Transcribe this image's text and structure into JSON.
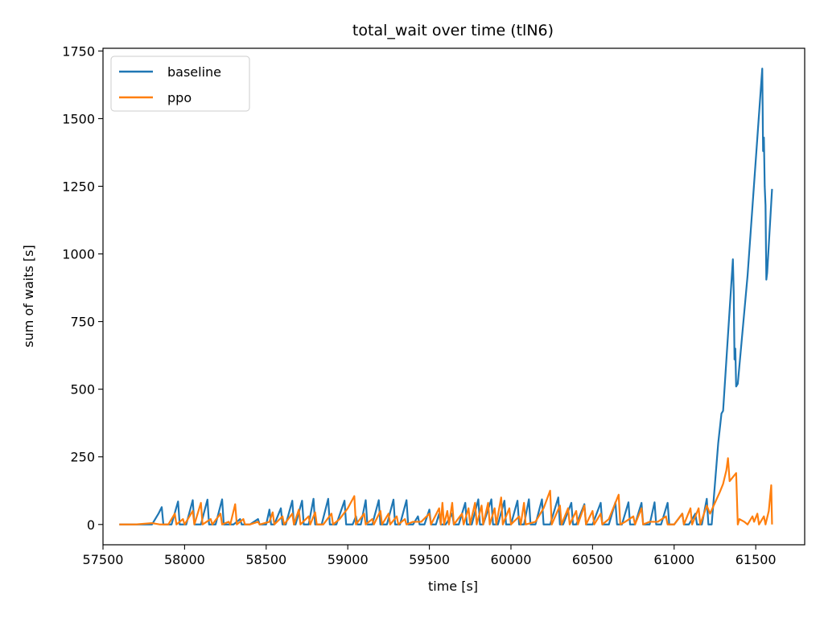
{
  "chart_data": {
    "type": "line",
    "title": "total_wait over time (tlN6)",
    "xlabel": "time [s]",
    "ylabel": "sum of waits [s]",
    "xlim": [
      57500,
      61800
    ],
    "ylim": [
      -75,
      1760
    ],
    "xticks": [
      57500,
      58000,
      58500,
      59000,
      59500,
      60000,
      60500,
      61000,
      61500
    ],
    "yticks": [
      0,
      250,
      500,
      750,
      1000,
      1250,
      1500,
      1750
    ],
    "grid": false,
    "legend": "top-left",
    "series": [
      {
        "name": "baseline",
        "color": "#1f77b4",
        "points": [
          [
            57600,
            0
          ],
          [
            57700,
            0
          ],
          [
            57800,
            0
          ],
          [
            57840,
            40
          ],
          [
            57860,
            64
          ],
          [
            57870,
            0
          ],
          [
            57920,
            0
          ],
          [
            57960,
            85
          ],
          [
            57970,
            0
          ],
          [
            58010,
            0
          ],
          [
            58050,
            90
          ],
          [
            58060,
            0
          ],
          [
            58100,
            0
          ],
          [
            58140,
            92
          ],
          [
            58150,
            0
          ],
          [
            58190,
            0
          ],
          [
            58230,
            93
          ],
          [
            58240,
            0
          ],
          [
            58300,
            0
          ],
          [
            58340,
            20
          ],
          [
            58350,
            0
          ],
          [
            58400,
            0
          ],
          [
            58450,
            20
          ],
          [
            58460,
            0
          ],
          [
            58500,
            0
          ],
          [
            58520,
            55
          ],
          [
            58530,
            0
          ],
          [
            58550,
            0
          ],
          [
            58590,
            60
          ],
          [
            58600,
            0
          ],
          [
            58620,
            0
          ],
          [
            58660,
            88
          ],
          [
            58670,
            0
          ],
          [
            58680,
            0
          ],
          [
            58720,
            88
          ],
          [
            58730,
            0
          ],
          [
            58760,
            0
          ],
          [
            58790,
            95
          ],
          [
            58800,
            0
          ],
          [
            58840,
            0
          ],
          [
            58880,
            95
          ],
          [
            58890,
            0
          ],
          [
            58930,
            0
          ],
          [
            58980,
            88
          ],
          [
            58990,
            0
          ],
          [
            59030,
            0
          ],
          [
            59050,
            30
          ],
          [
            59060,
            0
          ],
          [
            59080,
            0
          ],
          [
            59110,
            90
          ],
          [
            59120,
            0
          ],
          [
            59150,
            0
          ],
          [
            59190,
            90
          ],
          [
            59200,
            0
          ],
          [
            59240,
            0
          ],
          [
            59280,
            92
          ],
          [
            59290,
            0
          ],
          [
            59320,
            0
          ],
          [
            59360,
            90
          ],
          [
            59370,
            0
          ],
          [
            59400,
            0
          ],
          [
            59430,
            30
          ],
          [
            59440,
            0
          ],
          [
            59470,
            0
          ],
          [
            59500,
            55
          ],
          [
            59510,
            0
          ],
          [
            59540,
            0
          ],
          [
            59560,
            40
          ],
          [
            59570,
            0
          ],
          [
            59600,
            0
          ],
          [
            59640,
            40
          ],
          [
            59650,
            0
          ],
          [
            59680,
            0
          ],
          [
            59720,
            80
          ],
          [
            59730,
            0
          ],
          [
            59760,
            0
          ],
          [
            59800,
            93
          ],
          [
            59810,
            0
          ],
          [
            59830,
            0
          ],
          [
            59880,
            93
          ],
          [
            59890,
            0
          ],
          [
            59920,
            0
          ],
          [
            59960,
            88
          ],
          [
            59970,
            0
          ],
          [
            60000,
            0
          ],
          [
            60040,
            88
          ],
          [
            60050,
            0
          ],
          [
            60080,
            0
          ],
          [
            60110,
            93
          ],
          [
            60120,
            0
          ],
          [
            60150,
            0
          ],
          [
            60190,
            93
          ],
          [
            60200,
            0
          ],
          [
            60240,
            0
          ],
          [
            60290,
            100
          ],
          [
            60300,
            0
          ],
          [
            60320,
            0
          ],
          [
            60370,
            80
          ],
          [
            60380,
            0
          ],
          [
            60400,
            0
          ],
          [
            60450,
            75
          ],
          [
            60460,
            0
          ],
          [
            60500,
            0
          ],
          [
            60550,
            80
          ],
          [
            60560,
            0
          ],
          [
            60600,
            0
          ],
          [
            60640,
            82
          ],
          [
            60650,
            0
          ],
          [
            60680,
            0
          ],
          [
            60720,
            82
          ],
          [
            60730,
            0
          ],
          [
            60760,
            0
          ],
          [
            60800,
            80
          ],
          [
            60810,
            0
          ],
          [
            60850,
            0
          ],
          [
            60880,
            82
          ],
          [
            60890,
            0
          ],
          [
            60920,
            0
          ],
          [
            60960,
            80
          ],
          [
            60970,
            0
          ],
          [
            61000,
            0
          ],
          [
            61050,
            40
          ],
          [
            61060,
            0
          ],
          [
            61090,
            0
          ],
          [
            61130,
            40
          ],
          [
            61140,
            0
          ],
          [
            61170,
            0
          ],
          [
            61200,
            95
          ],
          [
            61210,
            0
          ],
          [
            61230,
            0
          ],
          [
            61250,
            150
          ],
          [
            61270,
            300
          ],
          [
            61290,
            410
          ],
          [
            61300,
            420
          ],
          [
            61360,
            980
          ],
          [
            61365,
            860
          ],
          [
            61370,
            610
          ],
          [
            61375,
            650
          ],
          [
            61380,
            510
          ],
          [
            61390,
            520
          ],
          [
            61450,
            920
          ],
          [
            61540,
            1685
          ],
          [
            61545,
            1380
          ],
          [
            61550,
            1430
          ],
          [
            61552,
            1360
          ],
          [
            61555,
            1250
          ],
          [
            61560,
            1180
          ],
          [
            61565,
            905
          ],
          [
            61570,
            930
          ],
          [
            61600,
            1240
          ]
        ]
      },
      {
        "name": "ppo",
        "color": "#ff7f0e",
        "points": [
          [
            57600,
            0
          ],
          [
            57700,
            0
          ],
          [
            57800,
            5
          ],
          [
            57850,
            0
          ],
          [
            57900,
            0
          ],
          [
            57940,
            40
          ],
          [
            57950,
            0
          ],
          [
            57990,
            20
          ],
          [
            58000,
            0
          ],
          [
            58050,
            50
          ],
          [
            58060,
            0
          ],
          [
            58100,
            80
          ],
          [
            58110,
            0
          ],
          [
            58160,
            20
          ],
          [
            58170,
            0
          ],
          [
            58220,
            40
          ],
          [
            58230,
            0
          ],
          [
            58270,
            10
          ],
          [
            58280,
            0
          ],
          [
            58310,
            75
          ],
          [
            58320,
            0
          ],
          [
            58360,
            20
          ],
          [
            58370,
            0
          ],
          [
            58400,
            0
          ],
          [
            58450,
            10
          ],
          [
            58460,
            0
          ],
          [
            58520,
            10
          ],
          [
            58540,
            45
          ],
          [
            58550,
            0
          ],
          [
            58600,
            30
          ],
          [
            58610,
            0
          ],
          [
            58660,
            40
          ],
          [
            58670,
            0
          ],
          [
            58700,
            55
          ],
          [
            58710,
            0
          ],
          [
            58760,
            30
          ],
          [
            58770,
            0
          ],
          [
            58800,
            45
          ],
          [
            58810,
            0
          ],
          [
            58850,
            0
          ],
          [
            58900,
            40
          ],
          [
            58910,
            0
          ],
          [
            58950,
            20
          ],
          [
            59000,
            60
          ],
          [
            59040,
            105
          ],
          [
            59050,
            0
          ],
          [
            59100,
            40
          ],
          [
            59110,
            0
          ],
          [
            59150,
            20
          ],
          [
            59160,
            0
          ],
          [
            59200,
            50
          ],
          [
            59210,
            0
          ],
          [
            59250,
            40
          ],
          [
            59260,
            0
          ],
          [
            59300,
            30
          ],
          [
            59310,
            0
          ],
          [
            59350,
            20
          ],
          [
            59360,
            0
          ],
          [
            59400,
            10
          ],
          [
            59450,
            10
          ],
          [
            59500,
            40
          ],
          [
            59510,
            0
          ],
          [
            59560,
            60
          ],
          [
            59570,
            0
          ],
          [
            59580,
            80
          ],
          [
            59590,
            0
          ],
          [
            59610,
            50
          ],
          [
            59620,
            0
          ],
          [
            59640,
            80
          ],
          [
            59650,
            0
          ],
          [
            59700,
            40
          ],
          [
            59710,
            0
          ],
          [
            59740,
            60
          ],
          [
            59750,
            0
          ],
          [
            59780,
            80
          ],
          [
            59790,
            0
          ],
          [
            59820,
            70
          ],
          [
            59830,
            0
          ],
          [
            59860,
            80
          ],
          [
            59870,
            0
          ],
          [
            59900,
            60
          ],
          [
            59910,
            0
          ],
          [
            59940,
            100
          ],
          [
            59950,
            0
          ],
          [
            59990,
            60
          ],
          [
            60000,
            0
          ],
          [
            60050,
            30
          ],
          [
            60060,
            0
          ],
          [
            60080,
            80
          ],
          [
            60090,
            0
          ],
          [
            60150,
            10
          ],
          [
            60200,
            60
          ],
          [
            60240,
            125
          ],
          [
            60250,
            0
          ],
          [
            60300,
            70
          ],
          [
            60310,
            0
          ],
          [
            60350,
            60
          ],
          [
            60360,
            0
          ],
          [
            60400,
            50
          ],
          [
            60410,
            0
          ],
          [
            60450,
            70
          ],
          [
            60460,
            0
          ],
          [
            60500,
            50
          ],
          [
            60510,
            0
          ],
          [
            60550,
            40
          ],
          [
            60560,
            0
          ],
          [
            60600,
            20
          ],
          [
            60660,
            110
          ],
          [
            60670,
            0
          ],
          [
            60700,
            10
          ],
          [
            60750,
            30
          ],
          [
            60760,
            0
          ],
          [
            60800,
            60
          ],
          [
            60810,
            0
          ],
          [
            60850,
            10
          ],
          [
            60900,
            10
          ],
          [
            60950,
            30
          ],
          [
            60960,
            0
          ],
          [
            61000,
            0
          ],
          [
            61050,
            40
          ],
          [
            61060,
            0
          ],
          [
            61100,
            60
          ],
          [
            61110,
            0
          ],
          [
            61150,
            60
          ],
          [
            61160,
            0
          ],
          [
            61200,
            70
          ],
          [
            61220,
            40
          ],
          [
            61250,
            80
          ],
          [
            61280,
            120
          ],
          [
            61300,
            150
          ],
          [
            61320,
            200
          ],
          [
            61330,
            245
          ],
          [
            61340,
            160
          ],
          [
            61380,
            190
          ],
          [
            61390,
            0
          ],
          [
            61400,
            20
          ],
          [
            61430,
            10
          ],
          [
            61450,
            0
          ],
          [
            61480,
            30
          ],
          [
            61490,
            10
          ],
          [
            61510,
            40
          ],
          [
            61520,
            0
          ],
          [
            61550,
            30
          ],
          [
            61560,
            0
          ],
          [
            61580,
            50
          ],
          [
            61595,
            145
          ],
          [
            61600,
            0
          ]
        ]
      }
    ]
  }
}
